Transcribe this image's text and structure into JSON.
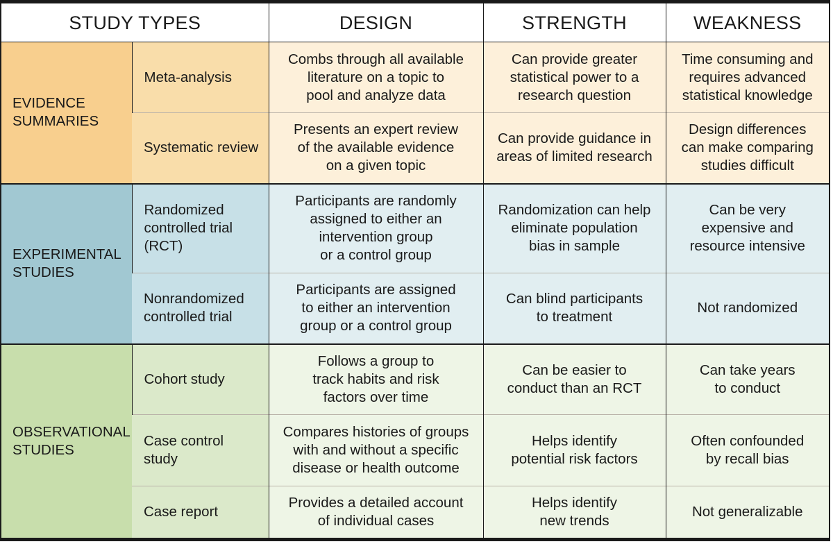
{
  "headers": {
    "study_types": "STUDY TYPES",
    "design": "DESIGN",
    "strength": "STRENGTH",
    "weakness": "WEAKNESS"
  },
  "groups": [
    {
      "category": "EVIDENCE\nSUMMARIES",
      "rows": [
        {
          "type": "Meta-analysis",
          "design": "Combs through all available\nliterature on a topic to\npool and analyze data",
          "strength": "Can provide greater\nstatistical power to a\nresearch question",
          "weakness": "Time consuming and\nrequires advanced\nstatistical knowledge"
        },
        {
          "type": "Systematic review",
          "design": "Presents an expert review\nof the available evidence\non a given topic",
          "strength": "Can provide guidance in\nareas of limited research",
          "weakness": "Design differences\ncan make comparing\nstudies difficult"
        }
      ]
    },
    {
      "category": "EXPERIMENTAL\nSTUDIES",
      "rows": [
        {
          "type": "Randomized\ncontrolled trial\n(RCT)",
          "design": "Participants are randomly\nassigned to either an\nintervention  group\nor a control group",
          "strength": "Randomization can help\neliminate population\nbias in sample",
          "weakness": "Can be very\nexpensive and\nresource intensive"
        },
        {
          "type": "Nonrandomized\ncontrolled trial",
          "design": "Participants are assigned\nto either an intervention\ngroup or a control group",
          "strength": "Can blind participants\nto treatment",
          "weakness": "Not randomized"
        }
      ]
    },
    {
      "category": "OBSERVATIONAL\nSTUDIES",
      "rows": [
        {
          "type": "Cohort study",
          "design": "Follows a group to\ntrack habits and risk\nfactors over time",
          "strength": "Can be easier to\nconduct than an RCT",
          "weakness": "Can take years\nto conduct"
        },
        {
          "type": "Case control\nstudy",
          "design": "Compares histories of groups\nwith and without a specific\ndisease or health outcome",
          "strength": "Helps identify\npotential risk factors",
          "weakness": "Often confounded\nby recall bias"
        },
        {
          "type": "Case report",
          "design": "Provides a detailed account\nof individual cases",
          "strength": "Helps identify\nnew trends",
          "weakness": "Not generalizable"
        }
      ]
    }
  ]
}
